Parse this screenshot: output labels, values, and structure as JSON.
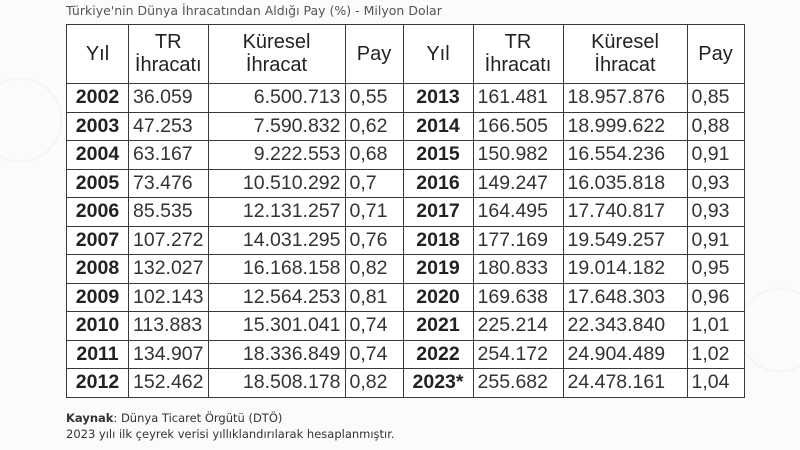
{
  "title": "Türkiye'nin Dünya İhracatından Aldığı Pay (%) - Milyon Dolar",
  "headers": {
    "year": "Yıl",
    "tr_1": "TR",
    "tr_2": "İhracatı",
    "global_1": "Küresel",
    "global_2": "İhracat",
    "share": "Pay"
  },
  "left_rows": [
    [
      "2002",
      "36.059",
      "6.500.713",
      "0,55"
    ],
    [
      "2003",
      "47.253",
      "7.590.832",
      "0,62"
    ],
    [
      "2004",
      "63.167",
      "9.222.553",
      "0,68"
    ],
    [
      "2005",
      "73.476",
      "10.510.292",
      "0,7"
    ],
    [
      "2006",
      "85.535",
      "12.131.257",
      "0,71"
    ],
    [
      "2007",
      "107.272",
      "14.031.295",
      "0,76"
    ],
    [
      "2008",
      "132.027",
      "16.168.158",
      "0,82"
    ],
    [
      "2009",
      "102.143",
      "12.564.253",
      "0,81"
    ],
    [
      "2010",
      "113.883",
      "15.301.041",
      "0,74"
    ],
    [
      "2011",
      "134.907",
      "18.336.849",
      "0,74"
    ],
    [
      "2012",
      "152.462",
      "18.508.178",
      "0,82"
    ]
  ],
  "right_rows": [
    [
      "2013",
      "161.481",
      "18.957.876",
      "0,85"
    ],
    [
      "2014",
      "166.505",
      "18.999.622",
      "0,88"
    ],
    [
      "2015",
      "150.982",
      "16.554.236",
      "0,91"
    ],
    [
      "2016",
      "149.247",
      "16.035.818",
      "0,93"
    ],
    [
      "2017",
      "164.495",
      "17.740.817",
      "0,93"
    ],
    [
      "2018",
      "177.169",
      "19.549.257",
      "0,91"
    ],
    [
      "2019",
      "180.833",
      "19.014.182",
      "0,95"
    ],
    [
      "2020",
      "169.638",
      "17.648.303",
      "0,96"
    ],
    [
      "2021",
      "225.214",
      "22.343.840",
      "1,01"
    ],
    [
      "2022",
      "254.172",
      "24.904.489",
      "1,02"
    ],
    [
      "2023*",
      "255.682",
      "24.478.161",
      "1,04"
    ]
  ],
  "source": {
    "label": "Kaynak",
    "text": ": Dünya Ticaret Örgütü (DTÖ)",
    "note": "2023 yılı ilk çeyrek verisi yıllıklandırılarak hesaplanmıştır."
  }
}
